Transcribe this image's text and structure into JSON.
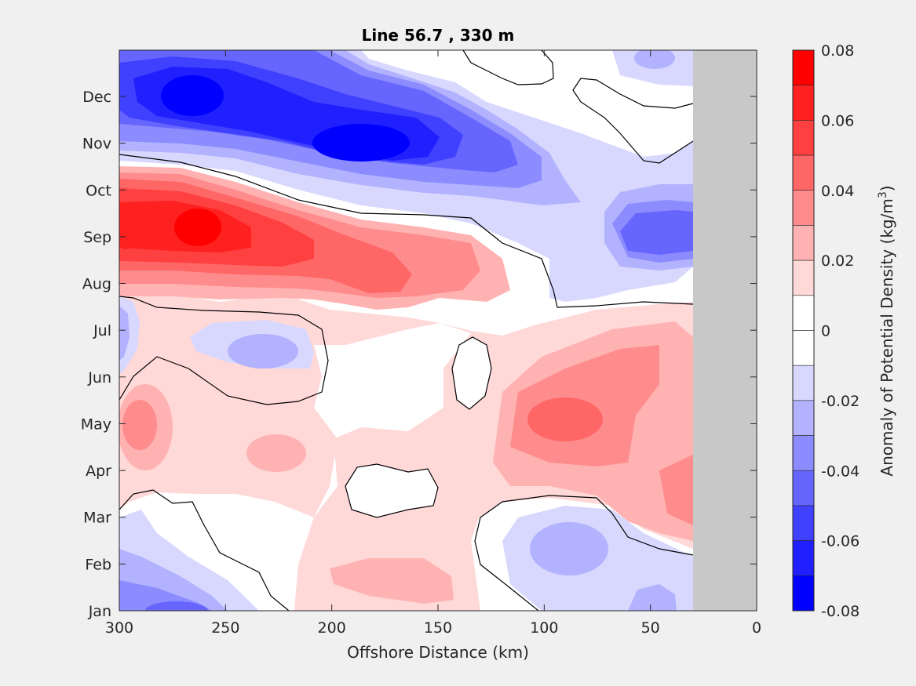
{
  "chart_data": {
    "type": "heatmap",
    "subtype": "filled-contour",
    "title": "Line 56.7 , 330 m",
    "xlabel": "Offshore Distance (km)",
    "ylabel": "",
    "xlim": [
      300,
      0
    ],
    "x_direction": "reversed",
    "x_ticks": [
      "300",
      "250",
      "200",
      "150",
      "100",
      "50",
      "0"
    ],
    "y_ticks": [
      "Jan",
      "Feb",
      "Mar",
      "Apr",
      "May",
      "Jun",
      "Jul",
      "Aug",
      "Sep",
      "Oct",
      "Nov",
      "Dec"
    ],
    "colorbar": {
      "label": "Anomaly of Potential Density (kg/m³)",
      "label_main": "Anomaly of Potential Density (kg/m",
      "label_sup": "3",
      "label_end": ")",
      "range": [
        -0.08,
        0.08
      ],
      "tick_labels": [
        "0.08",
        "0.06",
        "0.04",
        "0.02",
        "0",
        "-0.02",
        "-0.04",
        "-0.06",
        "-0.08"
      ],
      "levels": [
        {
          "range": [
            0.07,
            0.08
          ],
          "color": "#ff0000"
        },
        {
          "range": [
            0.06,
            0.07
          ],
          "color": "#ff2020"
        },
        {
          "range": [
            0.05,
            0.06
          ],
          "color": "#ff4040"
        },
        {
          "range": [
            0.04,
            0.05
          ],
          "color": "#ff6666"
        },
        {
          "range": [
            0.03,
            0.04
          ],
          "color": "#ff8c8c"
        },
        {
          "range": [
            0.02,
            0.03
          ],
          "color": "#ffb2b2"
        },
        {
          "range": [
            0.01,
            0.02
          ],
          "color": "#ffd8d8"
        },
        {
          "range": [
            0.0,
            0.01
          ],
          "color": "#ffffff"
        },
        {
          "range": [
            -0.01,
            0.0
          ],
          "color": "#ffffff"
        },
        {
          "range": [
            -0.02,
            -0.01
          ],
          "color": "#d8d8ff"
        },
        {
          "range": [
            -0.03,
            -0.02
          ],
          "color": "#b2b2ff"
        },
        {
          "range": [
            -0.04,
            -0.03
          ],
          "color": "#8c8cff"
        },
        {
          "range": [
            -0.05,
            -0.04
          ],
          "color": "#6666ff"
        },
        {
          "range": [
            -0.06,
            -0.05
          ],
          "color": "#4040ff"
        },
        {
          "range": [
            -0.07,
            -0.06
          ],
          "color": "#2020ff"
        },
        {
          "range": [
            -0.08,
            -0.07
          ],
          "color": "#0000ff"
        }
      ]
    },
    "zero_contour": "black line",
    "no_data_region_km": [
      0,
      30
    ],
    "no_data_color": "#c8c8c8",
    "features": [
      {
        "month": "Dec",
        "x_km": 260,
        "value": -0.08
      },
      {
        "month": "Nov",
        "x_km": 175,
        "value": -0.08
      },
      {
        "month": "Nov",
        "x_km": 105,
        "value": -0.05
      },
      {
        "month": "Sep",
        "x_km": 45,
        "value": -0.05
      },
      {
        "month": "Sep",
        "x_km": 260,
        "value": 0.07
      },
      {
        "month": "Aug",
        "x_km": 175,
        "value": 0.05
      },
      {
        "month": "May",
        "x_km": 90,
        "value": 0.05
      },
      {
        "month": "Jun",
        "x_km": 225,
        "value": -0.03
      },
      {
        "month": "Feb",
        "x_km": 85,
        "value": -0.03
      },
      {
        "month": "Jan",
        "x_km": 270,
        "value": -0.05
      },
      {
        "month": "Feb",
        "x_km": 180,
        "value": 0.03
      },
      {
        "month": "Apr",
        "x_km": 225,
        "value": 0.03
      },
      {
        "month": "May",
        "x_km": 290,
        "value": 0.04
      },
      {
        "month": "Apr",
        "x_km": 30,
        "value": 0.04
      }
    ]
  }
}
